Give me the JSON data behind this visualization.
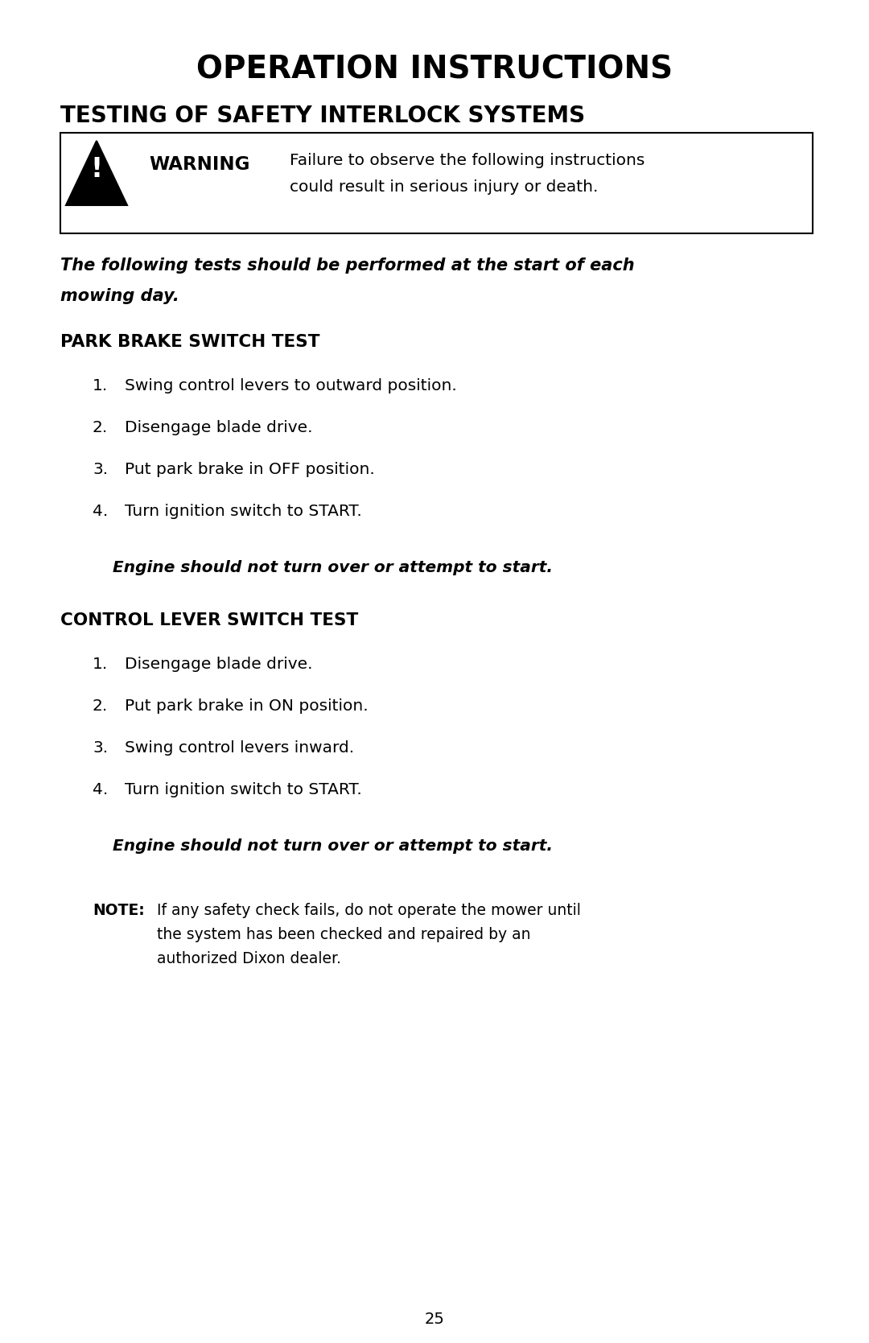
{
  "bg_color": "#ffffff",
  "text_color": "#000000",
  "page_number": "25",
  "main_title": "OPERATION INSTRUCTIONS",
  "section_title": "TESTING OF SAFETY INTERLOCK SYSTEMS",
  "warning_text_bold": "WARNING",
  "warning_line1": "Failure to observe the following instructions",
  "warning_line2": "could result in serious injury or death.",
  "intro_bold_italic": "The following tests should be performed at the start of each\nmowing day.",
  "park_brake_title": "PARK BRAKE SWITCH TEST",
  "park_brake_steps": [
    "Swing control levers to outward position.",
    "Disengage blade drive.",
    "Put park brake in OFF position.",
    "Turn ignition switch to START."
  ],
  "park_brake_result": "Engine should not turn over or attempt to start.",
  "control_lever_title": "CONTROL LEVER SWITCH TEST",
  "control_lever_steps": [
    "Disengage blade drive.",
    "Put park brake in ON position.",
    "Swing control levers inward.",
    "Turn ignition switch to START."
  ],
  "control_lever_result": "Engine should not turn over or attempt to start.",
  "note_label": "NOTE:",
  "note_text": "If any safety check fails, do not operate the mower until\nthe system has been checked and repaired by an\nauthorized Dixon dealer."
}
